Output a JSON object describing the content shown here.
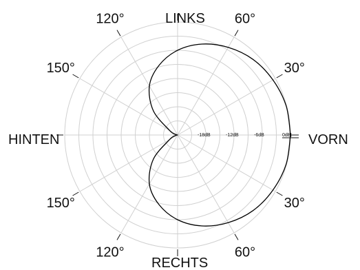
{
  "chart_data": {
    "type": "polar",
    "title": "",
    "direction_labels": {
      "front": "VORN",
      "back": "HINTEN",
      "left": "LINKS",
      "right": "RECHTS"
    },
    "angle_labels": [
      {
        "angle": 60,
        "side": "upper",
        "text": "60°"
      },
      {
        "angle": 30,
        "side": "upper",
        "text": "30°"
      },
      {
        "angle": 120,
        "side": "upper",
        "text": "120°"
      },
      {
        "angle": 150,
        "side": "upper",
        "text": "150°"
      },
      {
        "angle": 30,
        "side": "lower",
        "text": "30°"
      },
      {
        "angle": 60,
        "side": "lower",
        "text": "60°"
      },
      {
        "angle": 150,
        "side": "lower",
        "text": "150°"
      },
      {
        "angle": 120,
        "side": "lower",
        "text": "120°"
      }
    ],
    "radial_axis": {
      "unit": "dB",
      "range_db": [
        -24,
        0
      ],
      "tick_labels": [
        {
          "db": -18,
          "text": "-18dB"
        },
        {
          "db": -12,
          "text": "-12dB"
        },
        {
          "db": -6,
          "text": "-6dB"
        },
        {
          "db": 0,
          "text": "0dB"
        }
      ],
      "grid_step_db": 3
    },
    "series": [
      {
        "pattern": "cardioid",
        "angles_deg": [
          0,
          15,
          30,
          45,
          60,
          75,
          90,
          105,
          120,
          135,
          150,
          165,
          180
        ],
        "gain_db": [
          0,
          -0.1,
          -0.6,
          -1.3,
          -2.5,
          -4.0,
          -6.0,
          -8.7,
          -12.0,
          -16.7,
          -22.0,
          -23.5,
          -24
        ]
      }
    ]
  }
}
